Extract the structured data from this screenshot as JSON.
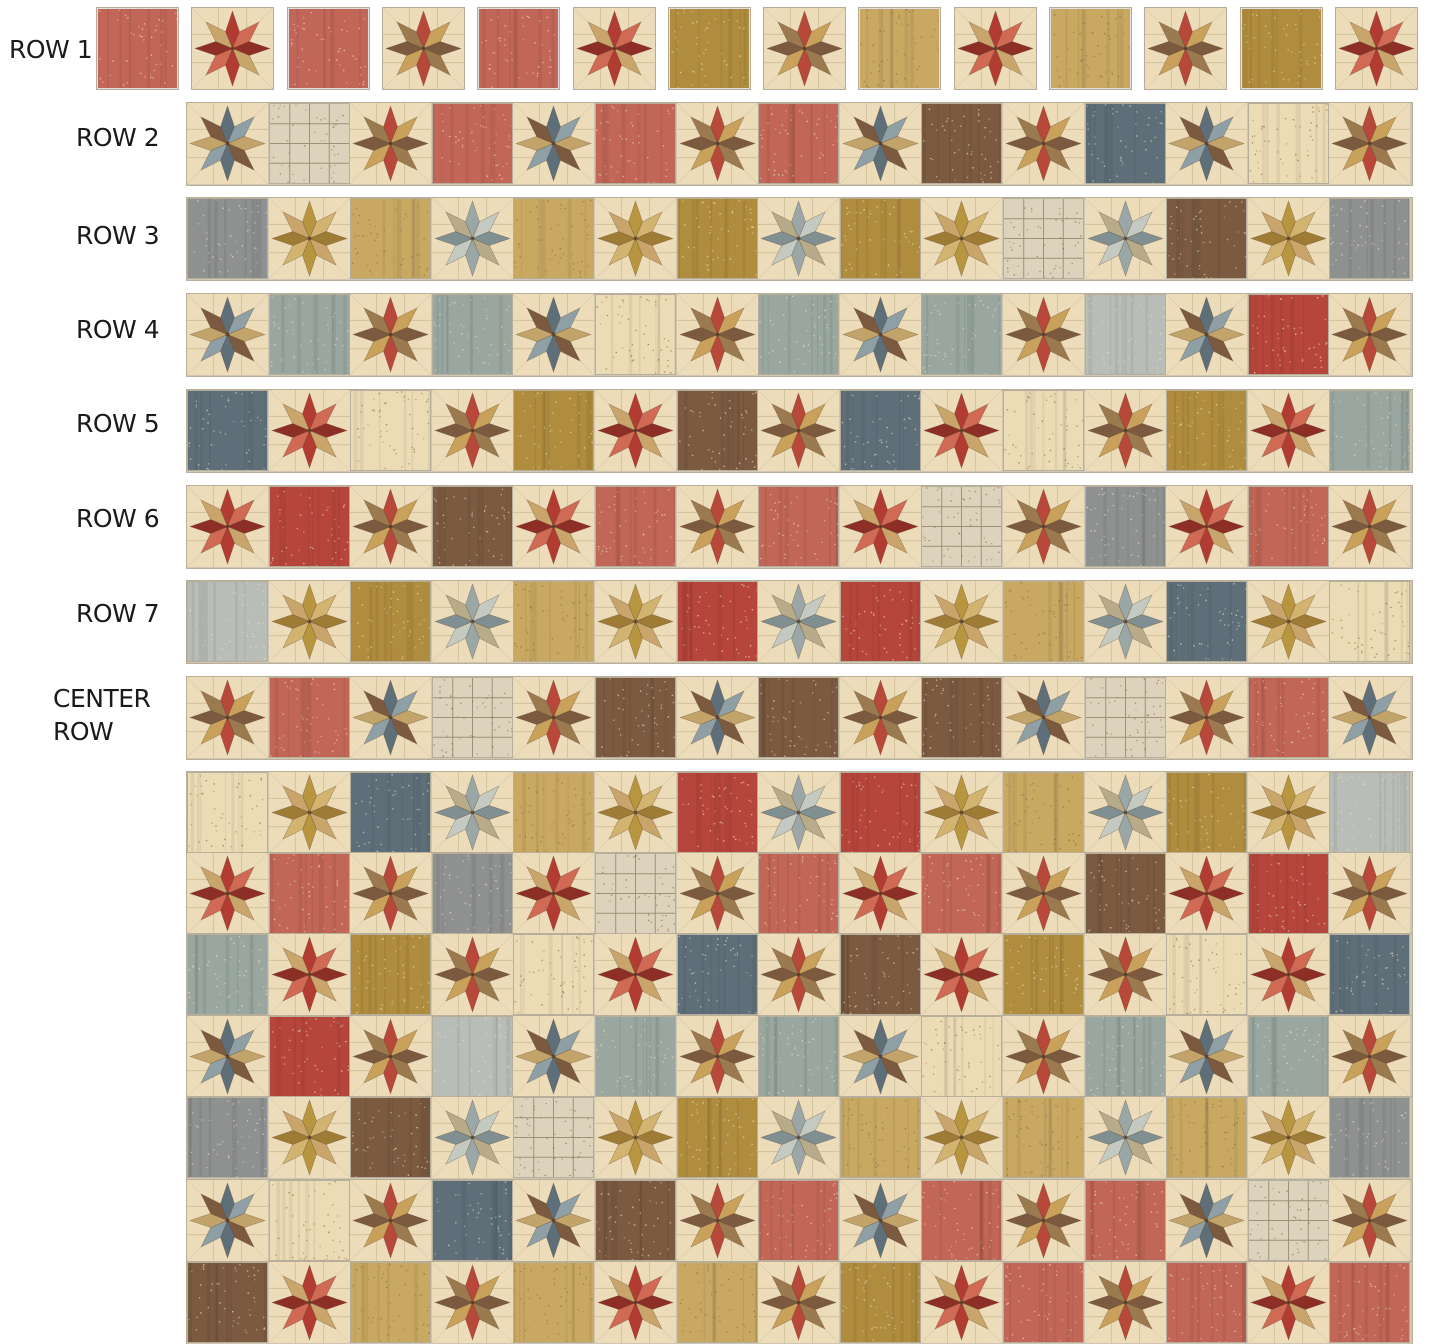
{
  "labels": {
    "row1": "ROW 1",
    "row2": "ROW 2",
    "row3": "ROW 3",
    "row4": "ROW 4",
    "row5": "ROW 5",
    "row6": "ROW 6",
    "row7": "ROW 7",
    "center_line1": "CENTER",
    "center_line2": "ROW"
  },
  "palette": {
    "background_star": "#ecdcb9",
    "red": "#b6463b",
    "rose": "#c26657",
    "brick": "#a93b30",
    "gold": "#b08d3e",
    "tan": "#c9a862",
    "cream": "#ecdcb5",
    "brown": "#7b5a40",
    "slate": "#5f6f79",
    "sage": "#9aa7a1",
    "grey": "#8e9190",
    "ltgrey": "#b9bdb7",
    "plaid": "#ddd3bc"
  },
  "rows": [
    {
      "name": "row1",
      "blocks": [
        "F:rose",
        "S:red",
        "F:rose",
        "S:warm",
        "F:rose",
        "S:red",
        "F:gold",
        "S:warm",
        "F:tan",
        "S:red",
        "F:tan",
        "S:warm",
        "F:gold",
        "S:red"
      ]
    },
    {
      "name": "row2",
      "blocks": [
        "S:grey",
        "F:plaid",
        "S:warm",
        "F:rose",
        "S:grey",
        "F:rose",
        "S:warm",
        "F:rose",
        "S:grey",
        "F:brown",
        "S:warm",
        "F:slate",
        "S:grey",
        "F:cream",
        "S:warm"
      ]
    },
    {
      "name": "row3",
      "blocks": [
        "F:grey",
        "S:gold",
        "F:tan",
        "S:sage",
        "F:tan",
        "S:gold",
        "F:gold",
        "S:sage",
        "F:gold",
        "S:gold",
        "F:plaid",
        "S:sage",
        "F:brown",
        "S:gold",
        "F:grey"
      ]
    },
    {
      "name": "row4",
      "blocks": [
        "S:grey",
        "F:sage",
        "S:warm",
        "F:sage",
        "S:grey",
        "F:cream",
        "S:warm",
        "F:sage",
        "S:grey",
        "F:sage",
        "S:warm",
        "F:ltgrey",
        "S:grey",
        "F:red",
        "S:warm"
      ]
    },
    {
      "name": "row5",
      "blocks": [
        "F:slate",
        "S:red",
        "F:cream",
        "S:warm",
        "F:gold",
        "S:red",
        "F:brown",
        "S:warm",
        "F:slate",
        "S:red",
        "F:cream",
        "S:warm",
        "F:gold",
        "S:red",
        "F:sage"
      ]
    },
    {
      "name": "row6",
      "blocks": [
        "S:red",
        "F:red",
        "S:warm",
        "F:brown",
        "S:red",
        "F:rose",
        "S:warm",
        "F:rose",
        "S:red",
        "F:plaid",
        "S:warm",
        "F:grey",
        "S:red",
        "F:rose",
        "S:warm"
      ]
    },
    {
      "name": "row7",
      "blocks": [
        "F:ltgrey",
        "S:gold",
        "F:gold",
        "S:sage",
        "F:tan",
        "S:gold",
        "F:red",
        "S:sage",
        "F:red",
        "S:gold",
        "F:tan",
        "S:sage",
        "F:slate",
        "S:gold",
        "F:cream"
      ]
    },
    {
      "name": "center",
      "blocks": [
        "S:warm",
        "F:rose",
        "S:grey",
        "F:plaid",
        "S:warm",
        "F:brown",
        "S:grey",
        "F:brown",
        "S:warm",
        "F:brown",
        "S:grey",
        "F:plaid",
        "S:warm",
        "F:rose",
        "S:grey"
      ]
    },
    {
      "name": "mirror7",
      "blocks": [
        "F:cream",
        "S:gold",
        "F:slate",
        "S:sage",
        "F:tan",
        "S:gold",
        "F:red",
        "S:sage",
        "F:red",
        "S:gold",
        "F:tan",
        "S:sage",
        "F:gold",
        "S:gold",
        "F:ltgrey"
      ]
    },
    {
      "name": "mirror6",
      "blocks": [
        "S:red",
        "F:rose",
        "S:warm",
        "F:grey",
        "S:red",
        "F:plaid",
        "S:warm",
        "F:rose",
        "S:red",
        "F:rose",
        "S:warm",
        "F:brown",
        "S:red",
        "F:red",
        "S:warm"
      ]
    },
    {
      "name": "mirror5",
      "blocks": [
        "F:sage",
        "S:red",
        "F:gold",
        "S:warm",
        "F:cream",
        "S:red",
        "F:slate",
        "S:warm",
        "F:brown",
        "S:red",
        "F:gold",
        "S:warm",
        "F:cream",
        "S:red",
        "F:slate"
      ]
    },
    {
      "name": "mirror4",
      "blocks": [
        "S:grey",
        "F:red",
        "S:warm",
        "F:ltgrey",
        "S:grey",
        "F:sage",
        "S:warm",
        "F:sage",
        "S:grey",
        "F:cream",
        "S:warm",
        "F:sage",
        "S:grey",
        "F:sage",
        "S:warm"
      ]
    },
    {
      "name": "mirror3",
      "blocks": [
        "F:grey",
        "S:gold",
        "F:brown",
        "S:sage",
        "F:plaid",
        "S:gold",
        "F:gold",
        "S:sage",
        "F:tan",
        "S:gold",
        "F:tan",
        "S:sage",
        "F:tan",
        "S:gold",
        "F:grey"
      ]
    },
    {
      "name": "mirror2",
      "blocks": [
        "S:grey",
        "F:cream",
        "S:warm",
        "F:slate",
        "S:grey",
        "F:brown",
        "S:warm",
        "F:rose",
        "S:grey",
        "F:rose",
        "S:warm",
        "F:rose",
        "S:grey",
        "F:plaid",
        "S:warm"
      ]
    },
    {
      "name": "mirror1",
      "blocks": [
        "F:brown",
        "S:red",
        "F:tan",
        "S:warm",
        "F:tan",
        "S:red",
        "F:tan",
        "S:warm",
        "F:gold",
        "S:red",
        "F:rose",
        "S:warm",
        "F:rose",
        "S:red",
        "F:rose"
      ]
    }
  ]
}
